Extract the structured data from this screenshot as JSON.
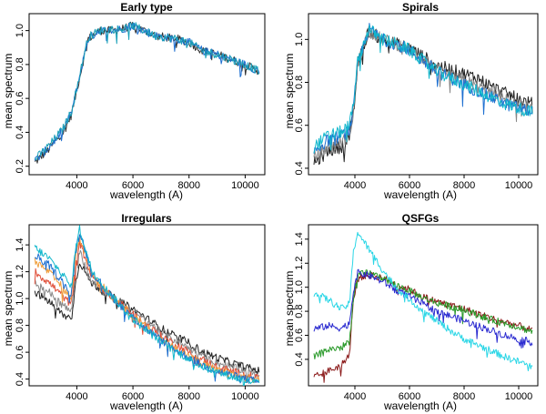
{
  "chart_data": [
    {
      "type": "line",
      "title": "Early type",
      "xlabel": "wavelength (A)",
      "ylabel": "mean spectrum",
      "xlim": [
        2300,
        10700
      ],
      "ylim": [
        0.15,
        1.1
      ],
      "xticks": [
        4000,
        6000,
        8000,
        10000
      ],
      "yticks": [
        0.2,
        0.4,
        0.6,
        0.8,
        1.0
      ],
      "ytick_labels": [
        "0.2",
        "0.4",
        "0.6",
        "0.8",
        "1.0"
      ],
      "noise": 0.025,
      "series": [
        {
          "name": "dark",
          "color": "#333333",
          "x": [
            2500,
            3000,
            3500,
            3800,
            4000,
            4400,
            4800,
            5200,
            5600,
            6000,
            6400,
            6800,
            7200,
            7600,
            8000,
            8500,
            9000,
            9500,
            10000,
            10500
          ],
          "y": [
            0.22,
            0.3,
            0.4,
            0.5,
            0.65,
            0.95,
            1.0,
            1.0,
            1.01,
            1.03,
            1.0,
            0.97,
            0.96,
            0.95,
            0.93,
            0.88,
            0.86,
            0.83,
            0.8,
            0.76
          ]
        },
        {
          "name": "blue",
          "color": "#1d6fd1",
          "x": [
            2500,
            3000,
            3500,
            3800,
            4000,
            4400,
            4800,
            5200,
            5600,
            6000,
            6400,
            6800,
            7200,
            7600,
            8000,
            8500,
            9000,
            9500,
            10000,
            10500
          ],
          "y": [
            0.23,
            0.31,
            0.41,
            0.51,
            0.66,
            0.95,
            1.0,
            1.0,
            1.01,
            1.03,
            1.0,
            0.97,
            0.96,
            0.95,
            0.93,
            0.88,
            0.86,
            0.83,
            0.8,
            0.76
          ]
        },
        {
          "name": "teal",
          "color": "#1aa0b8",
          "x": [
            2500,
            3000,
            3500,
            3800,
            4000,
            4400,
            4800,
            5200,
            5600,
            6000,
            6400,
            6800,
            7200,
            7600,
            8000,
            8500,
            9000,
            9500,
            10000,
            10500
          ],
          "y": [
            0.24,
            0.32,
            0.42,
            0.52,
            0.66,
            0.96,
            1.0,
            1.01,
            1.01,
            1.03,
            1.0,
            0.97,
            0.96,
            0.95,
            0.93,
            0.88,
            0.86,
            0.83,
            0.8,
            0.76
          ]
        }
      ]
    },
    {
      "type": "line",
      "title": "Spirals",
      "xlabel": "wavelength (A)",
      "ylabel": "mean spectrum",
      "xlim": [
        2300,
        10700
      ],
      "ylim": [
        0.37,
        1.12
      ],
      "xticks": [
        4000,
        6000,
        8000,
        10000
      ],
      "yticks": [
        0.4,
        0.6,
        0.8,
        1.0
      ],
      "ytick_labels": [
        "0.4",
        "0.6",
        "0.8",
        "1.0"
      ],
      "noise": 0.03,
      "series": [
        {
          "name": "black",
          "color": "#222222",
          "x": [
            2500,
            3000,
            3500,
            3800,
            3950,
            4100,
            4500,
            5000,
            5500,
            6000,
            6500,
            7000,
            7500,
            8000,
            8500,
            9000,
            9500,
            10000,
            10500
          ],
          "y": [
            0.42,
            0.48,
            0.5,
            0.55,
            0.65,
            0.88,
            1.04,
            1.0,
            0.98,
            0.96,
            0.92,
            0.88,
            0.86,
            0.84,
            0.82,
            0.78,
            0.75,
            0.72,
            0.7
          ]
        },
        {
          "name": "gray",
          "color": "#888888",
          "x": [
            2500,
            3000,
            3500,
            3800,
            3950,
            4100,
            4500,
            5000,
            5500,
            6000,
            6500,
            7000,
            7500,
            8000,
            8500,
            9000,
            9500,
            10000,
            10500
          ],
          "y": [
            0.45,
            0.5,
            0.52,
            0.56,
            0.66,
            0.88,
            1.04,
            1.0,
            0.98,
            0.95,
            0.91,
            0.86,
            0.83,
            0.81,
            0.78,
            0.75,
            0.72,
            0.69,
            0.67
          ]
        },
        {
          "name": "blue",
          "color": "#1d6fd1",
          "x": [
            2500,
            3000,
            3500,
            3800,
            3950,
            4100,
            4500,
            5000,
            5500,
            6000,
            6500,
            7000,
            7500,
            8000,
            8500,
            9000,
            9500,
            10000,
            10500
          ],
          "y": [
            0.48,
            0.53,
            0.55,
            0.58,
            0.68,
            0.88,
            1.05,
            1.0,
            0.98,
            0.95,
            0.9,
            0.85,
            0.82,
            0.79,
            0.76,
            0.73,
            0.7,
            0.68,
            0.66
          ]
        },
        {
          "name": "cyan",
          "color": "#11b7cc",
          "x": [
            2500,
            3000,
            3500,
            3800,
            3950,
            4100,
            4500,
            5000,
            5500,
            6000,
            6500,
            7000,
            7500,
            8000,
            8500,
            9000,
            9500,
            10000,
            10500
          ],
          "y": [
            0.5,
            0.55,
            0.57,
            0.6,
            0.7,
            0.89,
            1.05,
            1.0,
            0.98,
            0.95,
            0.9,
            0.85,
            0.82,
            0.79,
            0.76,
            0.73,
            0.7,
            0.68,
            0.66
          ]
        }
      ]
    },
    {
      "type": "line",
      "title": "Irregulars",
      "xlabel": "wavelength (A)",
      "ylabel": "mean spectrum",
      "xlim": [
        2300,
        10700
      ],
      "ylim": [
        0.35,
        1.55
      ],
      "xticks": [
        4000,
        6000,
        8000,
        10000
      ],
      "yticks": [
        0.4,
        0.6,
        0.8,
        1.0,
        1.2,
        1.4
      ],
      "ytick_labels": [
        "0.4",
        "0.6",
        "0.8",
        "1.0",
        "1.2",
        "1.4"
      ],
      "noise": 0.03,
      "series": [
        {
          "name": "black",
          "color": "#222222",
          "x": [
            2500,
            3000,
            3500,
            3800,
            3950,
            4100,
            4500,
            5000,
            5500,
            6000,
            6500,
            7000,
            7500,
            8000,
            8500,
            9000,
            9500,
            10000,
            10500
          ],
          "y": [
            1.05,
            0.98,
            0.88,
            0.85,
            1.1,
            1.28,
            1.12,
            1.05,
            0.98,
            0.92,
            0.85,
            0.78,
            0.72,
            0.67,
            0.6,
            0.56,
            0.52,
            0.49,
            0.46
          ]
        },
        {
          "name": "gray",
          "color": "#888888",
          "x": [
            2500,
            3000,
            3500,
            3800,
            3950,
            4100,
            4500,
            5000,
            5500,
            6000,
            6500,
            7000,
            7500,
            8000,
            8500,
            9000,
            9500,
            10000,
            10500
          ],
          "y": [
            1.12,
            1.05,
            0.95,
            0.9,
            1.2,
            1.35,
            1.15,
            1.05,
            0.97,
            0.9,
            0.83,
            0.75,
            0.69,
            0.63,
            0.57,
            0.52,
            0.49,
            0.46,
            0.43
          ]
        },
        {
          "name": "red",
          "color": "#e0503a",
          "x": [
            2500,
            3000,
            3500,
            3800,
            3950,
            4100,
            4500,
            5000,
            5500,
            6000,
            6500,
            7000,
            7500,
            8000,
            8500,
            9000,
            9500,
            10000,
            10500
          ],
          "y": [
            1.2,
            1.12,
            1.02,
            0.95,
            1.25,
            1.42,
            1.18,
            1.06,
            0.97,
            0.88,
            0.8,
            0.72,
            0.66,
            0.6,
            0.54,
            0.49,
            0.46,
            0.43,
            0.41
          ]
        },
        {
          "name": "orange",
          "color": "#f0a040",
          "x": [
            2500,
            3000,
            3500,
            3800,
            3950,
            4100,
            4500,
            5000,
            5500,
            6000,
            6500,
            7000,
            7500,
            8000,
            8500,
            9000,
            9500,
            10000,
            10500
          ],
          "y": [
            1.28,
            1.2,
            1.08,
            1.0,
            1.3,
            1.46,
            1.2,
            1.07,
            0.97,
            0.87,
            0.78,
            0.7,
            0.63,
            0.57,
            0.51,
            0.47,
            0.44,
            0.41,
            0.39
          ]
        },
        {
          "name": "blue",
          "color": "#1d6fd1",
          "x": [
            2500,
            3000,
            3500,
            3800,
            3950,
            4100,
            4500,
            5000,
            5500,
            6000,
            6500,
            7000,
            7500,
            8000,
            8500,
            9000,
            9500,
            10000,
            10500
          ],
          "y": [
            1.32,
            1.25,
            1.12,
            1.03,
            1.33,
            1.5,
            1.22,
            1.07,
            0.96,
            0.86,
            0.77,
            0.69,
            0.62,
            0.56,
            0.5,
            0.46,
            0.43,
            0.4,
            0.38
          ]
        },
        {
          "name": "cyan",
          "color": "#11b7cc",
          "x": [
            2500,
            3000,
            3500,
            3800,
            3950,
            4100,
            4500,
            5000,
            5500,
            6000,
            6500,
            7000,
            7500,
            8000,
            8500,
            9000,
            9500,
            10000,
            10500
          ],
          "y": [
            1.38,
            1.3,
            1.18,
            1.08,
            1.36,
            1.52,
            1.23,
            1.08,
            0.96,
            0.85,
            0.76,
            0.68,
            0.61,
            0.55,
            0.49,
            0.45,
            0.42,
            0.39,
            0.37
          ]
        }
      ]
    },
    {
      "type": "line",
      "title": "QSFGs",
      "xlabel": "wavelength (A)",
      "ylabel": "mean spectrum",
      "xlim": [
        2300,
        10700
      ],
      "ylim": [
        0.18,
        1.52
      ],
      "xticks": [
        4000,
        6000,
        8000,
        10000
      ],
      "yticks": [
        0.4,
        0.6,
        0.8,
        1.0,
        1.2,
        1.4
      ],
      "ytick_labels": [
        "0.4",
        "0.6",
        "0.8",
        "1.0",
        "1.2",
        "1.4"
      ],
      "noise": 0.03,
      "series": [
        {
          "name": "dark red",
          "color": "#8b1a1a",
          "x": [
            2500,
            3000,
            3500,
            3800,
            3950,
            4100,
            4500,
            5000,
            5500,
            6000,
            6500,
            7000,
            7500,
            8000,
            8500,
            9000,
            9500,
            10000,
            10500
          ],
          "y": [
            0.25,
            0.3,
            0.35,
            0.45,
            0.9,
            1.08,
            1.1,
            1.08,
            1.02,
            0.98,
            0.92,
            0.88,
            0.85,
            0.82,
            0.78,
            0.74,
            0.71,
            0.68,
            0.64
          ]
        },
        {
          "name": "green",
          "color": "#2a9a2a",
          "x": [
            2500,
            3000,
            3500,
            3800,
            3950,
            4100,
            4500,
            5000,
            5500,
            6000,
            6500,
            7000,
            7500,
            8000,
            8500,
            9000,
            9500,
            10000,
            10500
          ],
          "y": [
            0.42,
            0.48,
            0.5,
            0.55,
            0.92,
            1.1,
            1.12,
            1.08,
            1.02,
            0.97,
            0.91,
            0.87,
            0.84,
            0.81,
            0.77,
            0.73,
            0.7,
            0.67,
            0.63
          ]
        },
        {
          "name": "blue",
          "color": "#2a2ad0",
          "x": [
            2500,
            3000,
            3500,
            3800,
            3950,
            4100,
            4500,
            5000,
            5500,
            6000,
            6500,
            7000,
            7500,
            8000,
            8500,
            9000,
            9500,
            10000,
            10500
          ],
          "y": [
            0.65,
            0.68,
            0.66,
            0.7,
            0.98,
            1.12,
            1.1,
            1.05,
            0.98,
            0.92,
            0.86,
            0.8,
            0.76,
            0.72,
            0.68,
            0.64,
            0.6,
            0.57,
            0.54
          ]
        },
        {
          "name": "cyan",
          "color": "#2ad6e6",
          "x": [
            2500,
            3000,
            3500,
            3800,
            3950,
            4100,
            4500,
            5000,
            5500,
            6000,
            6500,
            7000,
            7500,
            8000,
            8500,
            9000,
            9500,
            10000,
            10500
          ],
          "y": [
            0.95,
            0.9,
            0.82,
            0.86,
            1.3,
            1.46,
            1.32,
            1.15,
            1.0,
            0.9,
            0.8,
            0.72,
            0.64,
            0.57,
            0.52,
            0.47,
            0.42,
            0.38,
            0.34
          ]
        }
      ]
    }
  ]
}
